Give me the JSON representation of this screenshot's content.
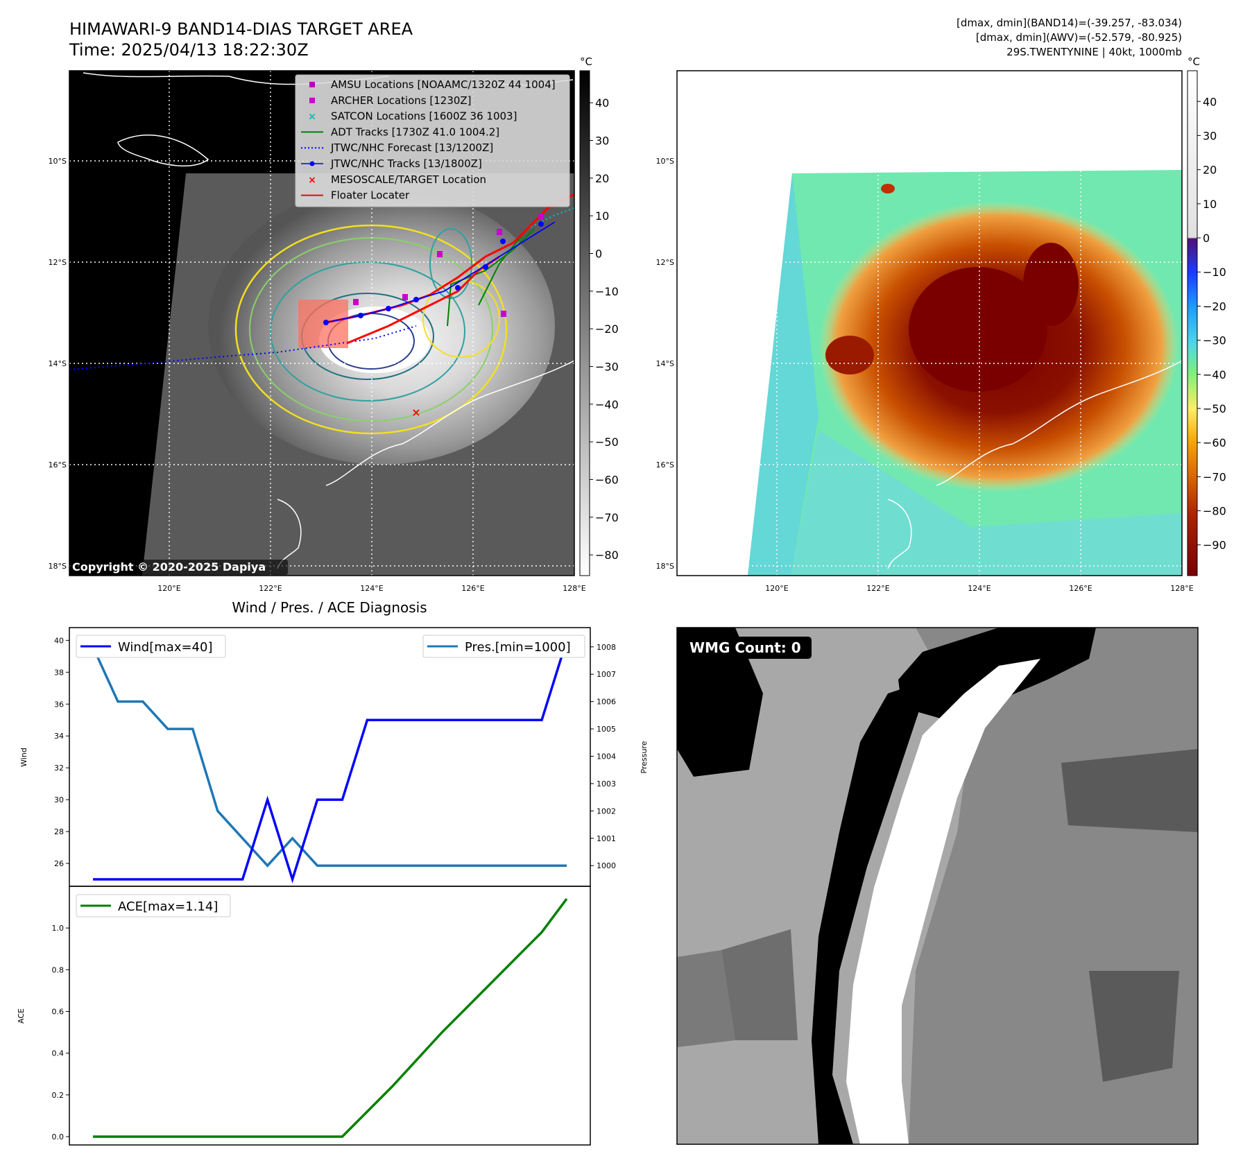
{
  "header": {
    "title_line1": "HIMAWARI-9 BAND14-DIAS TARGET AREA",
    "title_line2": "Time: 2025/04/13 18:22:30Z",
    "info_line1": "[dmax, dmin](BAND14)=(-39.257, -83.034)",
    "info_line2": "[dmax, dmin](AWV)=(-52.579, -80.925)",
    "info_line3": "29S.TWENTYNINE | 40kt, 1000mb"
  },
  "map": {
    "lat_labels": [
      "10°S",
      "12°S",
      "14°S",
      "16°S",
      "18°S"
    ],
    "lon_labels": [
      "120°E",
      "122°E",
      "124°E",
      "126°E",
      "128°E"
    ],
    "copyright": "Copyright © 2020-2025 Dapiya",
    "legend": [
      {
        "label": "AMSU Locations [NOAAMC/1320Z 44 1004]",
        "color": "#bb00bb",
        "marker": "square"
      },
      {
        "label": "ARCHER Locations [1230Z]",
        "color": "#cc00cc",
        "marker": "square"
      },
      {
        "label": "SATCON Locations [1600Z 36 1003]",
        "color": "#00bbbb",
        "marker": "x"
      },
      {
        "label": "ADT Tracks [1730Z 41.0 1004.2]",
        "color": "#008000",
        "marker": "line"
      },
      {
        "label": "JTWC/NHC Forecast [13/1200Z]",
        "color": "#0000ff",
        "marker": "dotted"
      },
      {
        "label": "JTWC/NHC Tracks [13/1800Z]",
        "color": "#0000ff",
        "marker": "line-dot"
      },
      {
        "label": "MESOSCALE/TARGET Location",
        "color": "#ff0000",
        "marker": "x"
      },
      {
        "label": "Floater Locater",
        "color": "#ff0000",
        "marker": "line"
      }
    ],
    "gray_colorbar": {
      "unit": "°C",
      "ticks": [
        "40",
        "30",
        "20",
        "10",
        "0",
        "−10",
        "−20",
        "−30",
        "−40",
        "−50",
        "−60",
        "−70",
        "−80"
      ]
    },
    "color_colorbar": {
      "unit": "°C",
      "ticks": [
        "40",
        "30",
        "20",
        "10",
        "0",
        "−10",
        "−20",
        "−30",
        "−40",
        "−50",
        "−60",
        "−70",
        "−80",
        "−90"
      ]
    }
  },
  "diagnosis": {
    "title": "Wind / Pres. / ACE Diagnosis",
    "wind_ylabel": "Wind",
    "pres_ylabel": "Pressure",
    "ace_ylabel": "ACE",
    "wind_legend": "Wind[max=40]",
    "pres_legend": "Pres.[min=1000]",
    "ace_legend": "ACE[max=1.14]",
    "wind_color": "#0000ff",
    "pres_color": "#1f77b4",
    "ace_color": "#008000"
  },
  "wmg": {
    "label": "WMG Count: 0"
  },
  "chart_data": [
    {
      "type": "line",
      "title": "Wind / Pres. / ACE Diagnosis",
      "x": [
        0,
        1,
        2,
        3,
        4,
        5,
        6,
        7,
        8,
        9,
        10,
        11,
        12,
        13,
        14,
        15,
        16,
        17,
        18,
        19
      ],
      "series": [
        {
          "name": "Wind[max=40]",
          "axis": "Wind",
          "values": [
            25,
            25,
            25,
            25,
            25,
            25,
            25,
            30,
            25,
            30,
            30,
            35,
            35,
            35,
            35,
            35,
            35,
            35,
            35,
            40
          ],
          "ylim": [
            25,
            40.8
          ]
        },
        {
          "name": "Pres.[min=1000]",
          "axis": "Pressure",
          "values": [
            1008,
            1006,
            1006,
            1005,
            1005,
            1002,
            1001,
            1000,
            1001,
            1000,
            1000,
            1000,
            1000,
            1000,
            1000,
            1000,
            1000,
            1000,
            1000,
            1000
          ],
          "ylim": [
            999.6,
            1008.4
          ]
        }
      ],
      "yticks_wind": [
        26,
        28,
        30,
        32,
        34,
        36,
        38,
        40
      ],
      "yticks_pres": [
        1000,
        1001,
        1002,
        1003,
        1004,
        1005,
        1006,
        1007,
        1008
      ]
    },
    {
      "type": "line",
      "x": [
        0,
        1,
        2,
        3,
        4,
        5,
        6,
        7,
        8,
        9,
        10,
        11,
        12,
        13,
        14,
        15,
        16,
        17,
        18,
        19
      ],
      "series": [
        {
          "name": "ACE[max=1.14]",
          "axis": "ACE",
          "values": [
            0,
            0,
            0,
            0,
            0,
            0,
            0,
            0,
            0,
            0,
            0,
            0.12,
            0.24,
            0.37,
            0.5,
            0.62,
            0.74,
            0.86,
            0.98,
            1.14
          ],
          "ylim": [
            -0.04,
            1.2
          ]
        }
      ],
      "yticks": [
        "0.0",
        "0.2",
        "0.4",
        "0.6",
        "0.8",
        "1.0"
      ]
    }
  ]
}
